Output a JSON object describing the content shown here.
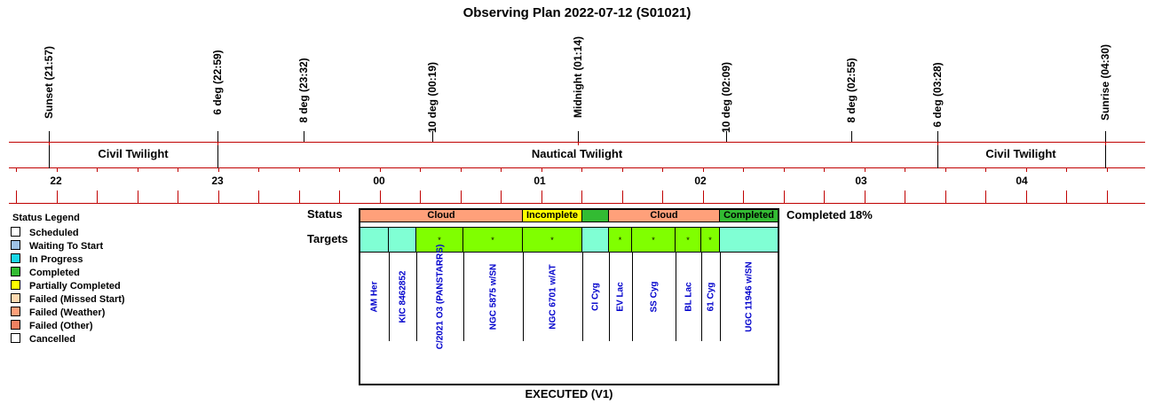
{
  "title": "Observing Plan 2022-07-12 (S01021)",
  "markers": [
    {
      "label": "Sunset (21:57)",
      "time": "21:57"
    },
    {
      "label": "6 deg (22:59)",
      "time": "22:59"
    },
    {
      "label": "8 deg (23:32)",
      "time": "23:32"
    },
    {
      "label": "10 deg (00:19)",
      "time": "00:19"
    },
    {
      "label": "Midnight (01:14)",
      "time": "01:14"
    },
    {
      "label": "10 deg (02:09)",
      "time": "02:09"
    },
    {
      "label": "8 deg (02:55)",
      "time": "02:55"
    },
    {
      "label": "6 deg (03:28)",
      "time": "03:28"
    },
    {
      "label": "Sunrise (04:30)",
      "time": "04:30"
    }
  ],
  "twilight": [
    "Civil Twilight",
    "Nautical Twilight",
    "Civil Twilight"
  ],
  "hours": [
    "22",
    "23",
    "00",
    "01",
    "02",
    "03",
    "04"
  ],
  "legend": {
    "title": "Status Legend",
    "items": [
      {
        "label": "Scheduled",
        "color": "#ffffff"
      },
      {
        "label": "Waiting To Start",
        "color": "#9ec3e6"
      },
      {
        "label": "In Progress",
        "color": "#19d7e8"
      },
      {
        "label": "Completed",
        "color": "#33bb33"
      },
      {
        "label": "Partially Completed",
        "color": "#ffff00"
      },
      {
        "label": "Failed (Missed Start)",
        "color": "#ffd9b0"
      },
      {
        "label": "Failed (Weather)",
        "color": "#ffa07a"
      },
      {
        "label": "Failed (Other)",
        "color": "#f08060"
      },
      {
        "label": "Cancelled",
        "color": "#ffffff"
      }
    ]
  },
  "row_labels": {
    "status": "Status",
    "targets": "Targets"
  },
  "status_segments": [
    {
      "label": "Cloud",
      "color": "#ffa07a"
    },
    {
      "label": "Incomplete",
      "color": "#ffff00"
    },
    {
      "label": "",
      "color": "#33bb33"
    },
    {
      "label": "Cloud",
      "color": "#ffa07a"
    },
    {
      "label": "Completed",
      "color": "#33bb33"
    }
  ],
  "target_cells": [
    {
      "mark": "",
      "color": "#80ffd4"
    },
    {
      "mark": "",
      "color": "#80ffd4"
    },
    {
      "mark": "*",
      "color": "#80ff00"
    },
    {
      "mark": "*",
      "color": "#80ff00"
    },
    {
      "mark": "*",
      "color": "#80ff00"
    },
    {
      "mark": "",
      "color": "#80ffd4"
    },
    {
      "mark": "*",
      "color": "#80ff00"
    },
    {
      "mark": "*",
      "color": "#80ff00"
    },
    {
      "mark": "*",
      "color": "#80ff00"
    },
    {
      "mark": "*",
      "color": "#80ff00"
    },
    {
      "mark": "",
      "color": "#80ffd4"
    }
  ],
  "targets": [
    "AM Her",
    "KIC 8462852",
    "C/2021 O3 (PANSTARRS)",
    "NGC 5875 w/SN",
    "NGC 6701 w/AT",
    "CI Cyg",
    "EV Lac",
    "SS Cyg",
    "BL Lac",
    "61 Cyg",
    "UGC 11946 w/SN"
  ],
  "completed_summary": "Completed 18%",
  "footer": "EXECUTED (V1)"
}
